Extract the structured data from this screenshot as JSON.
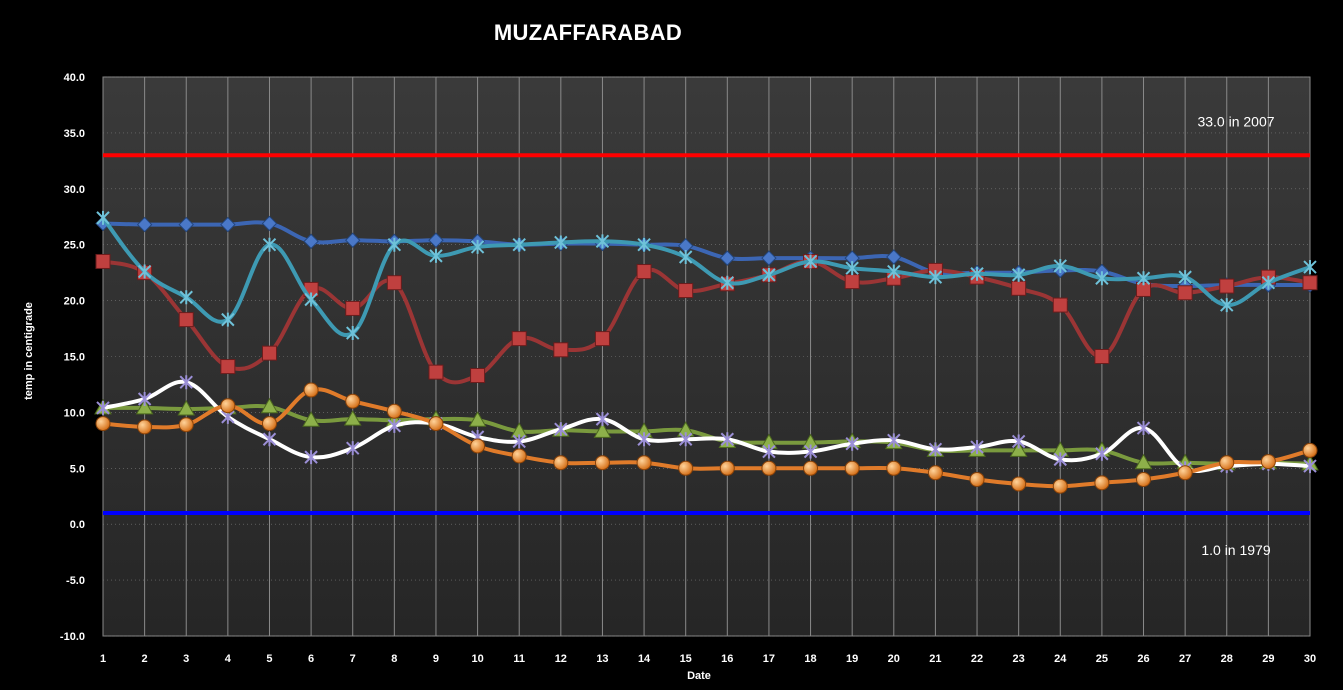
{
  "chart_data": {
    "type": "line",
    "title": "MUZAFFARABAD",
    "xlabel": "Date",
    "ylabel": "temp in centigrade",
    "ylim": [
      -10,
      40
    ],
    "yticks": [
      "-10.0",
      "-5.0",
      "0.0",
      "5.0",
      "10.0",
      "15.0",
      "20.0",
      "25.0",
      "30.0",
      "35.0",
      "40.0"
    ],
    "x": [
      1,
      2,
      3,
      4,
      5,
      6,
      7,
      8,
      9,
      10,
      11,
      12,
      13,
      14,
      15,
      16,
      17,
      18,
      19,
      20,
      21,
      22,
      23,
      24,
      25,
      26,
      27,
      28,
      29,
      30
    ],
    "grid": true,
    "legend": "none",
    "series": [
      {
        "color": "#3c66b4",
        "marker": "diamond",
        "values": [
          26.9,
          26.8,
          26.8,
          26.8,
          26.9,
          25.3,
          25.4,
          25.3,
          25.4,
          25.3,
          25.0,
          25.1,
          25.1,
          25.0,
          24.9,
          23.8,
          23.8,
          23.8,
          23.8,
          23.9,
          22.5,
          22.5,
          22.5,
          22.7,
          22.6,
          21.5,
          21.3,
          21.4,
          21.4,
          21.4
        ]
      },
      {
        "color": "#9b3535",
        "marker": "square",
        "values": [
          23.5,
          22.5,
          18.3,
          14.1,
          15.3,
          21.0,
          19.3,
          21.6,
          13.6,
          13.3,
          16.6,
          15.6,
          16.6,
          22.6,
          20.9,
          21.5,
          22.3,
          23.5,
          21.7,
          22.0,
          22.7,
          22.1,
          21.1,
          19.6,
          15.0,
          21.0,
          20.7,
          21.3,
          22.1,
          21.6
        ]
      },
      {
        "color": "#3e9ab3",
        "marker": "x-star",
        "values": [
          27.4,
          22.6,
          20.3,
          18.3,
          25.0,
          20.1,
          17.1,
          25.0,
          24.0,
          24.8,
          25.0,
          25.2,
          25.3,
          25.0,
          23.9,
          21.6,
          22.3,
          23.5,
          22.9,
          22.6,
          22.1,
          22.4,
          22.3,
          23.1,
          22.0,
          22.0,
          22.1,
          19.6,
          21.6,
          23.0
        ]
      },
      {
        "color": "#7a9a3e",
        "marker": "triangle",
        "values": [
          10.4,
          10.4,
          10.3,
          10.4,
          10.5,
          9.3,
          9.4,
          9.3,
          9.4,
          9.3,
          8.3,
          8.4,
          8.3,
          8.3,
          8.4,
          7.4,
          7.3,
          7.3,
          7.4,
          7.3,
          6.6,
          6.6,
          6.6,
          6.6,
          6.6,
          5.5,
          5.5,
          5.4,
          5.5,
          5.4
        ]
      },
      {
        "color": "#ffffff",
        "marker": "x-star",
        "values": [
          10.4,
          11.2,
          12.7,
          9.6,
          7.6,
          6.0,
          6.8,
          8.8,
          9.0,
          7.8,
          7.4,
          8.5,
          9.4,
          7.6,
          7.6,
          7.6,
          6.5,
          6.5,
          7.2,
          7.5,
          6.7,
          6.9,
          7.4,
          5.8,
          6.3,
          8.6,
          5.0,
          5.2,
          5.4,
          5.2
        ]
      },
      {
        "color": "#e07b2a",
        "marker": "circle",
        "values": [
          9.0,
          8.7,
          8.9,
          10.6,
          9.0,
          12.0,
          11.0,
          10.1,
          9.0,
          7.0,
          6.1,
          5.5,
          5.5,
          5.5,
          5.0,
          5.0,
          5.0,
          5.0,
          5.0,
          5.0,
          4.6,
          4.0,
          3.6,
          3.4,
          3.7,
          4.0,
          4.6,
          5.5,
          5.6,
          6.6
        ]
      }
    ],
    "reference_lines": [
      {
        "value": 33.0,
        "color": "#ff0000",
        "label": "33.0 in 2007"
      },
      {
        "value": 1.0,
        "color": "#0000ff",
        "label": "1.0 in 1979"
      }
    ]
  }
}
